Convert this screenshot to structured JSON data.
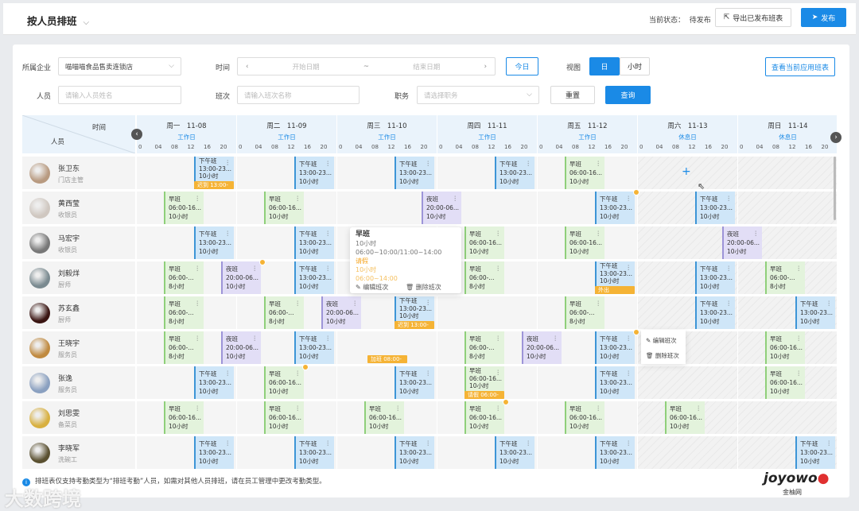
{
  "header": {
    "title": "按人员排班",
    "status_label": "当前状态：",
    "status_value": "待发布",
    "export_label": "导出已发布班表",
    "publish_label": "发布"
  },
  "filters": {
    "company_label": "所属企业",
    "company_value": "喵喵喵食品售卖连锁店",
    "time_label": "时间",
    "start_placeholder": "开始日期",
    "range_sep": "~",
    "end_placeholder": "结束日期",
    "today_label": "今日",
    "view_label": "视图",
    "view_options": [
      "日",
      "小时"
    ],
    "view_selected": "日",
    "view_applied_label": "查看当前应用班表",
    "person_label": "人员",
    "person_placeholder": "请输入人员姓名",
    "shift_label": "班次",
    "shift_placeholder": "请输入班次名称",
    "position_label": "职务",
    "position_placeholder": "请选择职务",
    "reset_label": "重置",
    "query_label": "查询"
  },
  "grid": {
    "corner_time": "时间",
    "corner_person": "人员",
    "ticks": [
      "0",
      "04",
      "08",
      "12",
      "16",
      "20"
    ],
    "days": [
      {
        "name": "周一　11-08",
        "type": "工作日",
        "rest": false
      },
      {
        "name": "周二　11-09",
        "type": "工作日",
        "rest": false
      },
      {
        "name": "周三　11-10",
        "type": "工作日",
        "rest": false
      },
      {
        "name": "周四　11-11",
        "type": "工作日",
        "rest": false
      },
      {
        "name": "周五　11-12",
        "type": "工作日",
        "rest": false
      },
      {
        "name": "周六　11-13",
        "type": "休息日",
        "rest": true
      },
      {
        "name": "周日　11-14",
        "type": "休息日",
        "rest": true
      }
    ],
    "shift_types": {
      "early": {
        "name": "早班",
        "time": "06:00-16...",
        "color": "#8fcf7a",
        "bg": "#e3f3dc"
      },
      "early8": {
        "name": "早班",
        "time": "06:00-...",
        "color": "#8fcf7a",
        "bg": "#e3f3dc"
      },
      "afternoon": {
        "name": "下午班",
        "time": "13:00-23...",
        "color": "#3d95d6",
        "bg": "#cfe6f8"
      },
      "night": {
        "name": "夜班",
        "time": "20:00-06...",
        "color": "#9d94d8",
        "bg": "#e2def6"
      }
    },
    "people": [
      {
        "name": "张卫东",
        "role": "门店主管",
        "avatar": "#b89a80",
        "shifts": [
          {
            "day": 0,
            "type": "afternoon",
            "hours": "10小时",
            "tag": "迟到 13:00-"
          },
          {
            "day": 1,
            "type": "afternoon",
            "hours": "10小时"
          },
          {
            "day": 2,
            "type": "afternoon",
            "hours": "10小时"
          },
          {
            "day": 3,
            "type": "afternoon",
            "hours": "10小时"
          },
          {
            "day": 4,
            "type": "early",
            "hours": "10小时"
          }
        ]
      },
      {
        "name": "黄西莹",
        "role": "收银员",
        "avatar": "#cfc7c0",
        "shifts": [
          {
            "day": 0,
            "type": "early",
            "hours": "10小时"
          },
          {
            "day": 1,
            "type": "early",
            "hours": "10小时"
          },
          {
            "day": 2,
            "type": "night",
            "hours": "10小时"
          },
          {
            "day": 4,
            "type": "afternoon",
            "hours": "10小时",
            "badge": true
          },
          {
            "day": 5,
            "type": "afternoon",
            "hours": "10小时"
          }
        ]
      },
      {
        "name": "马宏宇",
        "role": "收银员",
        "avatar": "#777",
        "shifts": [
          {
            "day": 0,
            "type": "afternoon",
            "hours": "10小时"
          },
          {
            "day": 1,
            "type": "afternoon",
            "hours": "10小时"
          },
          {
            "day": 3,
            "type": "early",
            "hours": "10小时"
          },
          {
            "day": 4,
            "type": "early",
            "hours": "10小时"
          },
          {
            "day": 5,
            "type": "night",
            "hours": "10小时"
          }
        ]
      },
      {
        "name": "刘毅烊",
        "role": "厨师",
        "avatar": "#7a8a90",
        "shifts": [
          {
            "day": 0,
            "type": "early8",
            "hours": "8小时"
          },
          {
            "day": 0,
            "type": "night",
            "hours": "10小时",
            "badge": true
          },
          {
            "day": 1,
            "type": "afternoon",
            "hours": "10小时"
          },
          {
            "day": 3,
            "type": "early8",
            "hours": "8小时"
          },
          {
            "day": 4,
            "type": "afternoon",
            "hours": "10小时",
            "tag": "外出"
          },
          {
            "day": 5,
            "type": "afternoon",
            "hours": "10小时"
          },
          {
            "day": 6,
            "type": "early8",
            "hours": "8小时"
          }
        ]
      },
      {
        "name": "苏玄鑫",
        "role": "厨师",
        "avatar": "#3a1512",
        "shifts": [
          {
            "day": 0,
            "type": "early8",
            "hours": "8小时"
          },
          {
            "day": 1,
            "type": "early8",
            "hours": "8小时"
          },
          {
            "day": 1,
            "type": "night",
            "hours": "10小时"
          },
          {
            "day": 2,
            "type": "afternoon",
            "hours": "10小时",
            "tag": "迟到 13:00-"
          },
          {
            "day": 4,
            "type": "early8",
            "hours": "8小时"
          },
          {
            "day": 5,
            "type": "afternoon",
            "hours": "10小时"
          },
          {
            "day": 6,
            "type": "afternoon",
            "hours": "10小时"
          }
        ]
      },
      {
        "name": "王晓宇",
        "role": "服务员",
        "avatar": "#c08a40",
        "shifts": [
          {
            "day": 0,
            "type": "early8",
            "hours": "8小时"
          },
          {
            "day": 0,
            "type": "night",
            "hours": "10小时"
          },
          {
            "day": 1,
            "type": "afternoon",
            "hours": "10小时"
          },
          {
            "day": 3,
            "type": "early8",
            "hours": "8小时"
          },
          {
            "day": 3,
            "type": "night",
            "hours": "10小时"
          },
          {
            "day": 4,
            "type": "afternoon",
            "hours": "10小时",
            "badge": true
          },
          {
            "day": 6,
            "type": "early",
            "hours": "10小时"
          }
        ],
        "free_tag": {
          "day": 2,
          "text": "加班 08:00-"
        }
      },
      {
        "name": "张逸",
        "role": "服务员",
        "avatar": "#8aa0c0",
        "shifts": [
          {
            "day": 0,
            "type": "afternoon",
            "hours": "10小时"
          },
          {
            "day": 1,
            "type": "early",
            "hours": "10小时",
            "badge": true
          },
          {
            "day": 2,
            "type": "afternoon",
            "hours": "10小时"
          },
          {
            "day": 3,
            "type": "early",
            "hours": "10小时",
            "tag": "请假 06:00-"
          },
          {
            "day": 4,
            "type": "afternoon",
            "hours": "10小时"
          },
          {
            "day": 6,
            "type": "early",
            "hours": "10小时"
          }
        ]
      },
      {
        "name": "刘思雯",
        "role": "备菜员",
        "avatar": "#d8b040",
        "shifts": [
          {
            "day": 0,
            "type": "early",
            "hours": "10小时"
          },
          {
            "day": 1,
            "type": "early",
            "hours": "10小时"
          },
          {
            "day": 2,
            "type": "early",
            "hours": "10小时"
          },
          {
            "day": 3,
            "type": "early",
            "hours": "10小时",
            "badge": true
          },
          {
            "day": 4,
            "type": "early",
            "hours": "10小时"
          },
          {
            "day": 5,
            "type": "early",
            "hours": "10小时"
          }
        ]
      },
      {
        "name": "李晓军",
        "role": "洗碗工",
        "avatar": "#5a5030",
        "shifts": [
          {
            "day": 0,
            "type": "afternoon",
            "hours": "10小时"
          },
          {
            "day": 1,
            "type": "afternoon",
            "hours": "10小时"
          },
          {
            "day": 2,
            "type": "afternoon",
            "hours": "10小时"
          },
          {
            "day": 3,
            "type": "afternoon",
            "hours": "10小时"
          },
          {
            "day": 4,
            "type": "afternoon",
            "hours": "10小时"
          },
          {
            "day": 6,
            "type": "afternoon",
            "hours": "10小时"
          }
        ]
      }
    ]
  },
  "popover": {
    "title": "早班",
    "hours": "10小时",
    "time": "06:00~10:00/11:00~14:00",
    "leave_label": "请假",
    "leave_hours": "10小时",
    "leave_time": "06:00~14:00",
    "edit_label": "编辑班次",
    "delete_label": "删除班次"
  },
  "context_menu": {
    "edit_label": "编辑班次",
    "delete_label": "删除班次"
  },
  "footer": {
    "notice": "排班表仅支持考勤类型为“排班考勤”人员，如需对其他人员排班，请在员工管理中更改考勤类型。"
  },
  "logo": {
    "brand": "joyowo",
    "cn": "金柚网"
  },
  "watermark": "大数跨境"
}
